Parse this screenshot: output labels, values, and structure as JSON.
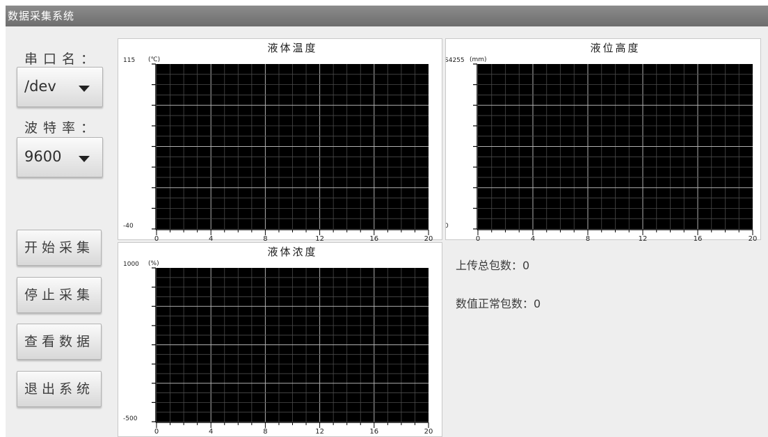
{
  "window": {
    "title": "数据采集系统"
  },
  "serial": {
    "label": "串口名：",
    "value": "/dev",
    "icon": "chevron-down-icon"
  },
  "baud": {
    "label": "波特率：",
    "value": "9600",
    "icon": "chevron-down-icon"
  },
  "buttons": {
    "start": "开始采集",
    "stop": "停止采集",
    "view": "查看数据",
    "exit": "退出系统"
  },
  "stats": {
    "uploaded_label": "上传总包数：",
    "uploaded_value": "0",
    "valid_label": "数值正常包数：",
    "valid_value": "0"
  },
  "colors": {
    "plot_background": "#000000",
    "grid": "#8a8a8a",
    "titlebar": "#7a7a7a"
  },
  "chart_data": [
    {
      "type": "line",
      "title": "液体温度",
      "ylabel": "(℃)",
      "ytick_labels": [
        "115",
        "-40"
      ],
      "ylim": [
        -40,
        115
      ],
      "xlim": [
        0,
        20
      ],
      "xtick_labels": [
        "0",
        "4",
        "8",
        "12",
        "16",
        "20"
      ],
      "grid": true,
      "series": []
    },
    {
      "type": "line",
      "title": "液位高度",
      "ylabel": "(mm)",
      "ytick_labels": [
        "S4255",
        "0"
      ],
      "ylim": [
        0,
        54255
      ],
      "xlim": [
        0,
        20
      ],
      "xtick_labels": [
        "0",
        "4",
        "8",
        "12",
        "16",
        "20"
      ],
      "grid": true,
      "series": []
    },
    {
      "type": "line",
      "title": "液体浓度",
      "ylabel": "(%)",
      "ytick_labels": [
        "1000",
        "-500"
      ],
      "ylim": [
        -500,
        1000
      ],
      "xlim": [
        0,
        20
      ],
      "xtick_labels": [
        "0",
        "4",
        "8",
        "12",
        "16",
        "20"
      ],
      "grid": true,
      "series": []
    }
  ]
}
